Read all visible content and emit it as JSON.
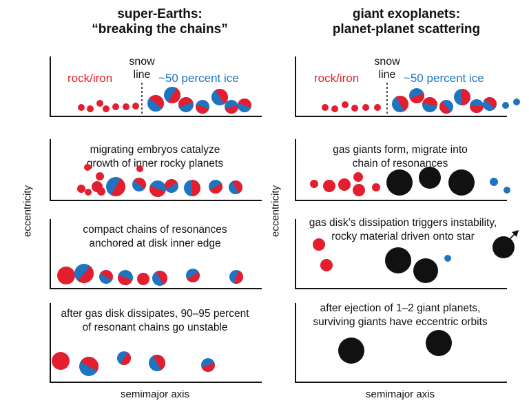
{
  "left": {
    "title_line1": "super-Earths:",
    "title_line2": "“breaking the chains”",
    "panel1": {
      "rock_label": "rock/iron",
      "snow_line1": "snow",
      "snow_line2": "line",
      "ice_label": "~50 percent ice"
    },
    "panel2": {
      "line1": "migrating embryos catalyze",
      "line2": "growth of inner rocky planets"
    },
    "panel3": {
      "line1": "compact chains of resonances",
      "line2": "anchored at disk inner edge"
    },
    "panel4": {
      "line1": "after gas disk dissipates, 90–95 percent",
      "line2": "of resonant chains go unstable"
    },
    "ylabel": "eccentricity",
    "xlabel": "semimajor axis"
  },
  "right": {
    "title_line1": "giant exoplanets:",
    "title_line2": "planet-planet scattering",
    "panel1": {
      "rock_label": "rock/iron",
      "snow_line1": "snow",
      "snow_line2": "line",
      "ice_label": "~50 percent ice"
    },
    "panel2": {
      "line1": "gas giants form, migrate into",
      "line2": "chain of resonances"
    },
    "panel3": {
      "line1": "gas disk’s dissipation triggers instability,",
      "line2": "rocky material driven onto star"
    },
    "panel4": {
      "line1": "after ejection of 1–2 giant planets,",
      "line2": "surviving giants have eccentric orbits"
    },
    "ylabel": "eccentricity",
    "xlabel": "semimajor axis"
  },
  "colors": {
    "rock": "#e21e2f",
    "ice": "#1f74c0",
    "giant": "#111111",
    "axis": "#111111"
  }
}
